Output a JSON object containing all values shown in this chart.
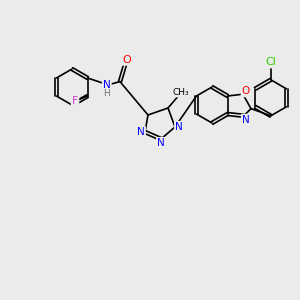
{
  "bg_color": "#ebebeb",
  "bond_color": "#000000",
  "bond_width": 1.2,
  "font_size": 7.5,
  "atom_colors": {
    "N": "#0000ff",
    "O": "#ff0000",
    "F": "#cc44cc",
    "Cl": "#33cc00",
    "H": "#777777",
    "C": "#000000"
  }
}
